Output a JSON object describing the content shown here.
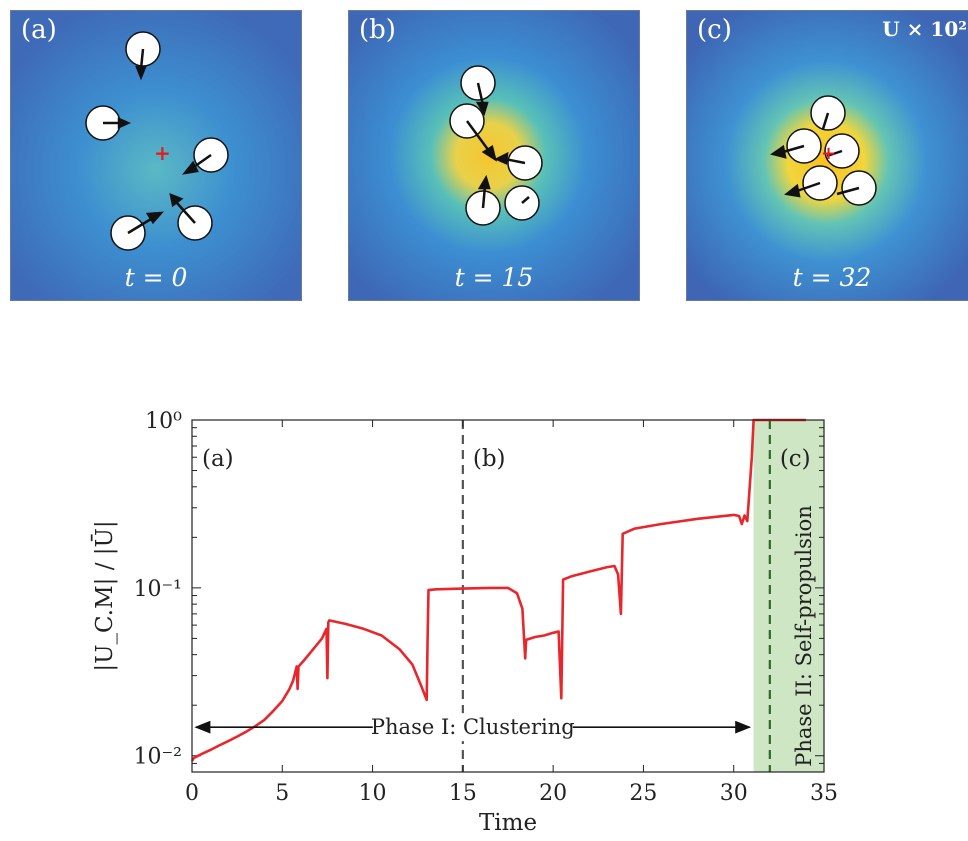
{
  "panels": [
    {
      "label": "(a)",
      "time_label": "t = 0"
    },
    {
      "label": "(b)",
      "time_label": "t = 15"
    },
    {
      "label": "(c)",
      "time_label": "t = 32",
      "scale_label": "U × 10²"
    }
  ],
  "chart_data": {
    "type": "line",
    "title": "",
    "xlabel": "Time",
    "ylabel": "|U_C.M| / |Ū|",
    "xlim": [
      0,
      35
    ],
    "ylim": [
      0.008,
      1.0
    ],
    "y_scale": "log",
    "x_ticks": [
      0,
      5,
      10,
      15,
      20,
      25,
      30,
      35
    ],
    "y_ticks": [
      {
        "value": 0.01,
        "label": "10⁻²"
      },
      {
        "value": 0.1,
        "label": "10⁻¹"
      },
      {
        "value": 1.0,
        "label": "10⁰"
      }
    ],
    "series": [
      {
        "color": "#e8262b",
        "points": [
          [
            0,
            0.0093
          ],
          [
            0.1,
            0.0097
          ],
          [
            0.5,
            0.0102
          ],
          [
            1,
            0.0108
          ],
          [
            1.5,
            0.0115
          ],
          [
            2,
            0.0122
          ],
          [
            2.5,
            0.013
          ],
          [
            3,
            0.0139
          ],
          [
            3.5,
            0.015
          ],
          [
            4,
            0.0163
          ],
          [
            4.5,
            0.0185
          ],
          [
            5,
            0.0212
          ],
          [
            5.4,
            0.025
          ],
          [
            5.6,
            0.028
          ],
          [
            5.8,
            0.034
          ],
          [
            5.85,
            0.025
          ],
          [
            5.9,
            0.034
          ],
          [
            6.2,
            0.037
          ],
          [
            6.7,
            0.043
          ],
          [
            7.2,
            0.05
          ],
          [
            7.45,
            0.057
          ],
          [
            7.5,
            0.029
          ],
          [
            7.55,
            0.062
          ],
          [
            7.6,
            0.064
          ],
          [
            8.5,
            0.061
          ],
          [
            9.5,
            0.057
          ],
          [
            10.5,
            0.052
          ],
          [
            11.5,
            0.043
          ],
          [
            12.2,
            0.035
          ],
          [
            12.7,
            0.026
          ],
          [
            13,
            0.0215
          ],
          [
            13.05,
            0.05
          ],
          [
            13.1,
            0.097
          ],
          [
            13.5,
            0.098
          ],
          [
            15,
            0.099
          ],
          [
            16.5,
            0.1
          ],
          [
            17.5,
            0.1
          ],
          [
            18,
            0.093
          ],
          [
            18.3,
            0.075
          ],
          [
            18.45,
            0.038
          ],
          [
            18.5,
            0.049
          ],
          [
            19,
            0.051
          ],
          [
            19.5,
            0.052
          ],
          [
            20,
            0.054
          ],
          [
            20.3,
            0.055
          ],
          [
            20.45,
            0.022
          ],
          [
            20.55,
            0.112
          ],
          [
            21,
            0.117
          ],
          [
            22,
            0.125
          ],
          [
            23,
            0.133
          ],
          [
            23.4,
            0.135
          ],
          [
            23.6,
            0.12
          ],
          [
            23.75,
            0.07
          ],
          [
            23.85,
            0.21
          ],
          [
            24.5,
            0.225
          ],
          [
            26,
            0.24
          ],
          [
            28,
            0.258
          ],
          [
            30,
            0.272
          ],
          [
            30.3,
            0.268
          ],
          [
            30.45,
            0.24
          ],
          [
            30.6,
            0.27
          ],
          [
            30.75,
            0.25
          ],
          [
            31.0,
            0.6
          ],
          [
            31.1,
            1.0
          ],
          [
            34,
            1.0
          ]
        ]
      }
    ],
    "reference_lines": [
      {
        "x": 15,
        "label": "(b)",
        "color": "#555555"
      },
      {
        "x": 32,
        "label": "(c)",
        "color": "#2a6a2a"
      }
    ],
    "corner_label": "(a)",
    "shaded_region": {
      "x_start": 31.1,
      "x_end": 35,
      "color": "#cfe6c4",
      "label": "Phase II: Self-propulsion"
    },
    "annotation": {
      "text": "Phase I: Clustering",
      "y": 0.0148,
      "x_start": 0,
      "x_end": 31.1
    }
  }
}
